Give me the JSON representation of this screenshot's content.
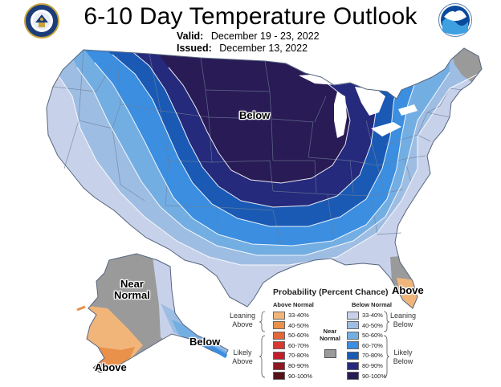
{
  "header": {
    "title": "6-10 Day Temperature Outlook",
    "valid_label": "Valid:",
    "valid_value": "December 19 - 23, 2022",
    "issued_label": "Issued:",
    "issued_value": "December 13, 2022",
    "left_logo": "commerce-seal-icon",
    "right_logo": "noaa-logo-icon"
  },
  "regions": {
    "below_conus": "Below",
    "above_florida": "Above",
    "near_normal_alaska_1": "Near",
    "near_normal_alaska_2": "Normal",
    "above_alaska": "Above",
    "below_alaska": "Below"
  },
  "legend": {
    "title": "Probability (Percent Chance)",
    "above_normal_header": "Above Normal",
    "below_normal_header": "Below Normal",
    "leaning_above_1": "Leaning",
    "leaning_above_2": "Above",
    "likely_above_1": "Likely",
    "likely_above_2": "Above",
    "near_normal_1": "Near",
    "near_normal_2": "Normal",
    "leaning_below_1": "Leaning",
    "leaning_below_2": "Below",
    "likely_below_1": "Likely",
    "likely_below_2": "Below",
    "above_classes": [
      {
        "label": "33-40%",
        "color": "#f1b57a"
      },
      {
        "label": "40-50%",
        "color": "#e9904a"
      },
      {
        "label": "50-60%",
        "color": "#e2673a"
      },
      {
        "label": "60-70%",
        "color": "#d8382f"
      },
      {
        "label": "70-80%",
        "color": "#c21d2b"
      },
      {
        "label": "80-90%",
        "color": "#8e1721"
      },
      {
        "label": "90-100%",
        "color": "#561118"
      }
    ],
    "below_classes": [
      {
        "label": "33-40%",
        "color": "#c7d2ea"
      },
      {
        "label": "40-50%",
        "color": "#9ebde3"
      },
      {
        "label": "50-60%",
        "color": "#73aee3"
      },
      {
        "label": "60-70%",
        "color": "#3b8ee0"
      },
      {
        "label": "70-80%",
        "color": "#1a5ab5"
      },
      {
        "label": "80-90%",
        "color": "#252a7c"
      },
      {
        "label": "90-100%",
        "color": "#291b56"
      }
    ],
    "near_normal_color": "#9a9a9a"
  },
  "colors": {
    "state_line": "#6e7f9a",
    "land_outline": "#55657f",
    "lake": "#ffffff"
  }
}
